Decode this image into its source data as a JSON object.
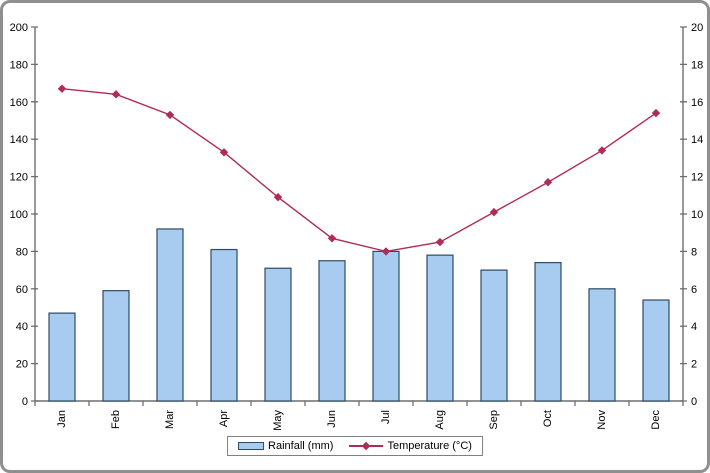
{
  "chart_data": {
    "type": "combo",
    "title": "",
    "categories": [
      "Jan",
      "Feb",
      "Mar",
      "Apr",
      "May",
      "Jun",
      "Jul",
      "Aug",
      "Sep",
      "Oct",
      "Nov",
      "Dec"
    ],
    "series": [
      {
        "name": "Rainfall (mm)",
        "type": "bar",
        "axis": "left",
        "values": [
          47,
          59,
          92,
          81,
          71,
          75,
          80,
          78,
          70,
          74,
          60,
          54
        ],
        "fill": "#A7CCF0",
        "stroke": "#2E4A66"
      },
      {
        "name": "Temperature (°C)",
        "type": "line",
        "axis": "right",
        "marker": "diamond",
        "values": [
          16.7,
          16.4,
          15.3,
          13.3,
          10.9,
          8.7,
          8.0,
          8.5,
          10.1,
          11.7,
          13.4,
          15.4
        ],
        "color": "#B02B57"
      }
    ],
    "axes": {
      "left": {
        "min": 0,
        "max": 200,
        "step": 20,
        "ticks": [
          0,
          20,
          40,
          60,
          80,
          100,
          120,
          140,
          160,
          180,
          200
        ]
      },
      "right": {
        "min": 0,
        "max": 20,
        "step": 2,
        "ticks": [
          0,
          2,
          4,
          6,
          8,
          10,
          12,
          14,
          16,
          18,
          20
        ]
      }
    },
    "grid": false,
    "legend": {
      "position": "bottom",
      "entries": [
        "Rainfall (mm)",
        "Temperature (°C)"
      ]
    }
  },
  "colors": {
    "background": "#FFFFFF",
    "axis_line": "#6E6E6E",
    "tick_text": "#000000",
    "frame_border": "#8F8F8F",
    "legend_border": "#7F7F7F"
  }
}
